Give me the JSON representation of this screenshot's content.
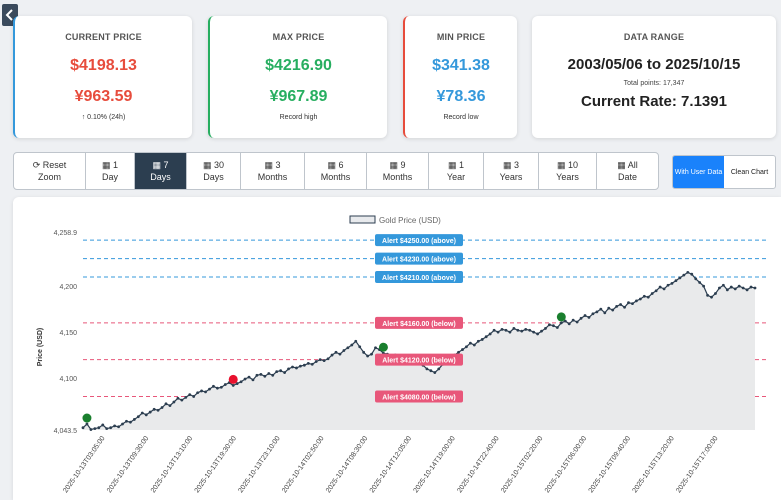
{
  "cards": {
    "current": {
      "title": "CURRENT PRICE",
      "usd": "$4198.13",
      "cny": "¥963.59",
      "change": "↑ 0.10% (24h)"
    },
    "max": {
      "title": "MAX PRICE",
      "usd": "$4216.90",
      "cny": "¥967.89",
      "note": "Record high"
    },
    "min": {
      "title": "MIN PRICE",
      "usd": "$341.38",
      "cny": "¥78.36",
      "note": "Record low"
    },
    "range": {
      "title": "DATA RANGE",
      "dates": "2003/05/06 to 2025/10/15",
      "total": "Total points: 17,347",
      "rate": "Current Rate: 7.1391"
    }
  },
  "ranges": [
    {
      "icon": "sync-icon",
      "l1": "Reset",
      "l2": "Zoom",
      "active": false
    },
    {
      "icon": "calendar-icon",
      "l1": "1",
      "l2": "Day",
      "active": false
    },
    {
      "icon": "calendar-icon",
      "l1": "7",
      "l2": "Days",
      "active": true
    },
    {
      "icon": "calendar-icon",
      "l1": "30",
      "l2": "Days",
      "active": false
    },
    {
      "icon": "calendar-icon",
      "l1": "3",
      "l2": "Months",
      "active": false
    },
    {
      "icon": "calendar-icon",
      "l1": "6",
      "l2": "Months",
      "active": false
    },
    {
      "icon": "calendar-icon",
      "l1": "9",
      "l2": "Months",
      "active": false
    },
    {
      "icon": "calendar-icon",
      "l1": "1",
      "l2": "Year",
      "active": false
    },
    {
      "icon": "calendar-icon",
      "l1": "3",
      "l2": "Years",
      "active": false
    },
    {
      "icon": "calendar-icon",
      "l1": "10",
      "l2": "Years",
      "active": false
    },
    {
      "icon": "calendar-icon",
      "l1": "All",
      "l2": "Date",
      "active": false
    }
  ],
  "view_toggle": {
    "active": "With User Data",
    "inactive": "Clean Chart"
  },
  "colors": {
    "line": "#2c3e50",
    "up": "#1a7f2e",
    "down": "#e8112d",
    "alert_above": "#3498db",
    "alert_below": "#e8577a"
  },
  "chart_data": {
    "type": "line",
    "legend": "Gold Price (USD)",
    "ylabel": "Price (USD)",
    "ylim": [
      4043.5,
      4258.9
    ],
    "yticks": [
      "4,258.9",
      "4,200",
      "4,150",
      "4,100",
      "4,043.5"
    ],
    "yticks_values": [
      4258.9,
      4200,
      4150,
      4100,
      4043.5
    ],
    "xticks": [
      "2025-10-13T03:05:00",
      "2025-10-13T09:30:00",
      "2025-10-13T13:10:00",
      "2025-10-13T19:30:00",
      "2025-10-13T23:10:00",
      "2025-10-14T02:50:00",
      "2025-10-14T08:30:00",
      "2025-10-14T12:05:00",
      "2025-10-14T19:00:00",
      "2025-10-14T22:40:00",
      "2025-10-15T02:20:00",
      "2025-10-15T06:00:00",
      "2025-10-15T09:40:00",
      "2025-10-15T13:20:00",
      "2025-10-15T17:00:00"
    ],
    "series": [
      {
        "name": "Gold Price (USD)",
        "values": [
          4046,
          4050,
          4044,
          4045,
          4046,
          4049,
          4045,
          4046,
          4048,
          4047,
          4050,
          4053,
          4052,
          4055,
          4058,
          4062,
          4060,
          4063,
          4066,
          4065,
          4068,
          4072,
          4070,
          4074,
          4078,
          4076,
          4079,
          4082,
          4080,
          4084,
          4086,
          4085,
          4088,
          4091,
          4089,
          4090,
          4093,
          4095,
          4092,
          4094,
          4096,
          4099,
          4101,
          4098,
          4103,
          4104,
          4102,
          4105,
          4103,
          4107,
          4108,
          4106,
          4110,
          4112,
          4111,
          4113,
          4114,
          4116,
          4115,
          4118,
          4120,
          4119,
          4121,
          4125,
          4128,
          4126,
          4130,
          4133,
          4136,
          4140,
          4134,
          4128,
          4124,
          4126,
          4133,
          4131,
          4127,
          4126,
          4124,
          4125,
          4122,
          4120,
          4121,
          4119,
          4118,
          4120,
          4114,
          4110,
          4108,
          4106,
          4110,
          4115,
          4118,
          4122,
          4125,
          4128,
          4131,
          4134,
          4138,
          4136,
          4140,
          4142,
          4145,
          4148,
          4152,
          4150,
          4153,
          4152,
          4150,
          4154,
          4152,
          4151,
          4153,
          4152,
          4150,
          4148,
          4151,
          4154,
          4158,
          4157,
          4155,
          4160,
          4162,
          4159,
          4163,
          4161,
          4165,
          4168,
          4166,
          4170,
          4172,
          4175,
          4171,
          4176,
          4174,
          4178,
          4180,
          4177,
          4182,
          4181,
          4184,
          4186,
          4189,
          4188,
          4192,
          4195,
          4199,
          4197,
          4201,
          4203,
          4206,
          4209,
          4212,
          4215,
          4213,
          4208,
          4204,
          4200,
          4190,
          4188,
          4192,
          4198,
          4201,
          4196,
          4199,
          4197,
          4200,
          4198,
          4196,
          4199,
          4198
        ]
      }
    ],
    "markers": [
      {
        "type": "up",
        "index": 1
      },
      {
        "type": "down",
        "index": 38
      },
      {
        "type": "up",
        "index": 76
      },
      {
        "type": "up",
        "index": 121
      }
    ],
    "alerts": [
      {
        "label": "Alert $4250.00 (above)",
        "value": 4250,
        "kind": "above"
      },
      {
        "label": "Alert $4230.00 (above)",
        "value": 4230,
        "kind": "above"
      },
      {
        "label": "Alert $4210.00 (above)",
        "value": 4210,
        "kind": "above"
      },
      {
        "label": "Alert $4160.00 (below)",
        "value": 4160,
        "kind": "below"
      },
      {
        "label": "Alert $4120.00 (below)",
        "value": 4120,
        "kind": "below"
      },
      {
        "label": "Alert $4080.00 (below)",
        "value": 4080,
        "kind": "below"
      }
    ],
    "grid": false
  }
}
